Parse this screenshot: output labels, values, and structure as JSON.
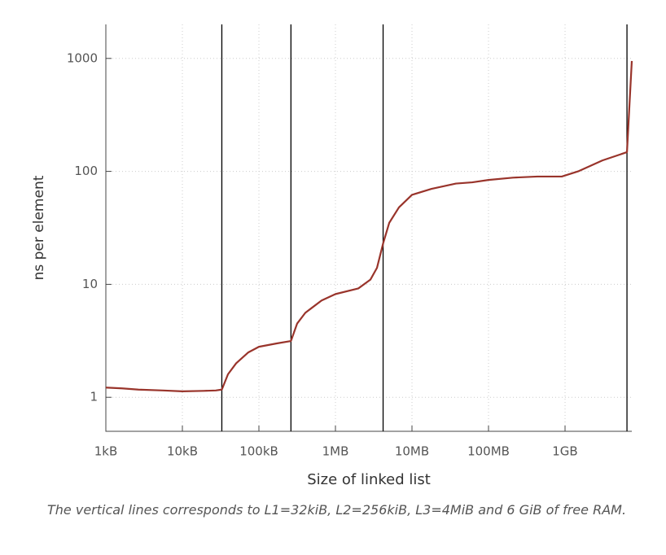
{
  "chart_data": {
    "type": "line",
    "x_label": "Size of linked list",
    "y_label": "ns per element",
    "caption": "The vertical lines corresponds to L1=32kiB, L2=256kiB, L3=4MiB and 6 GiB of free RAM.",
    "xscale": "log",
    "yscale": "log",
    "grid": true,
    "xlim": [
      1000,
      7450000000
    ],
    "ylim": [
      0.5,
      2000
    ],
    "xticks": [
      {
        "value": 1000,
        "label": "1kB"
      },
      {
        "value": 10000,
        "label": "10kB"
      },
      {
        "value": 100000,
        "label": "100kB"
      },
      {
        "value": 1000000,
        "label": "1MB"
      },
      {
        "value": 10000000,
        "label": "10MB"
      },
      {
        "value": 100000000,
        "label": "100MB"
      },
      {
        "value": 1000000000,
        "label": "1GB"
      }
    ],
    "yticks": [
      1,
      10,
      100,
      1000
    ],
    "vlines": [
      32768,
      262144,
      4194304,
      6442450944
    ],
    "vline_color": "#000000",
    "series": [
      {
        "color": "#99342b",
        "x": [
          1000,
          1633,
          2667,
          5559,
          10000,
          18920,
          27300,
          32768,
          39450,
          50400,
          72800,
          100000,
          171000,
          262144,
          316000,
          404000,
          659000,
          1000000,
          1990000,
          2860000,
          3490000,
          4194304,
          5040000,
          6760000,
          10000000,
          18000000,
          37500000,
          61200000,
          100000000,
          208000000,
          435000000,
          906000000,
          1480000000,
          3080000000,
          6442450944,
          7450000000
        ],
        "values": [
          1.22,
          1.2,
          1.17,
          1.15,
          1.13,
          1.14,
          1.15,
          1.17,
          1.6,
          2.0,
          2.5,
          2.8,
          3.0,
          3.15,
          4.5,
          5.6,
          7.2,
          8.2,
          9.2,
          11,
          14,
          23,
          35,
          48,
          62,
          70,
          78,
          80,
          84,
          88,
          90,
          90,
          100,
          125,
          148,
          950
        ]
      }
    ]
  }
}
